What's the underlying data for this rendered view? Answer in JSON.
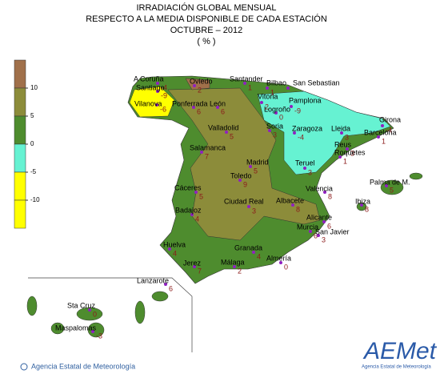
{
  "header": {
    "title": [
      "IRRADIACIÓN GLOBAL MENSUAL",
      "RESPECTO A LA MEDIA DISPONIBLE DE CADA ESTACIÓN",
      "OCTUBRE – 2012",
      "( % )"
    ]
  },
  "legend": {
    "ticks": [
      10,
      5,
      0,
      -5,
      -10
    ],
    "colors": [
      "#a0704a",
      "#8c8c3a",
      "#4e8c2e",
      "#66f2d2",
      "#ffff00",
      "#ffff00"
    ]
  },
  "stations": [
    {
      "name": "A Coruña",
      "value": -4
    },
    {
      "name": "Santiago",
      "value": -9
    },
    {
      "name": "Vilanova",
      "value": -6
    },
    {
      "name": "Ponferrada",
      "value": 6
    },
    {
      "name": "León",
      "value": 6
    },
    {
      "name": "Oviedo",
      "value": 2
    },
    {
      "name": "Santander",
      "value": 1
    },
    {
      "name": "Bilbao",
      "value": 1
    },
    {
      "name": "San Sebastian"
    },
    {
      "name": "Vitoria",
      "value": 2
    },
    {
      "name": "Logroño",
      "value": 0
    },
    {
      "name": "Pamplona",
      "value": -9
    },
    {
      "name": "Girona",
      "value": -4
    },
    {
      "name": "Soria",
      "value": 3
    },
    {
      "name": "Zaragoza",
      "value": -4
    },
    {
      "name": "Lleida",
      "value": 3
    },
    {
      "name": "Barcelona",
      "value": 1
    },
    {
      "name": "Valladolid",
      "value": 5
    },
    {
      "name": "Reus",
      "value": 3
    },
    {
      "name": "Roquetes",
      "value": 1
    },
    {
      "name": "Salamanca",
      "value": 7
    },
    {
      "name": "Madrid",
      "value": 5
    },
    {
      "name": "Teruel",
      "value": 3
    },
    {
      "name": "Palma de M.",
      "value": 5
    },
    {
      "name": "Toledo",
      "value": 9
    },
    {
      "name": "Cáceres",
      "value": 5
    },
    {
      "name": "Valencia",
      "value": 8
    },
    {
      "name": "Ibiza",
      "value": 8
    },
    {
      "name": "Ciudad Real",
      "value": 3
    },
    {
      "name": "Albacete",
      "value": 8
    },
    {
      "name": "Badajoz",
      "value": 4
    },
    {
      "name": "Alicante",
      "value": 6
    },
    {
      "name": "Murcia",
      "value": 6
    },
    {
      "name": "San Javier",
      "value": 3
    },
    {
      "name": "Huelva",
      "value": 4
    },
    {
      "name": "Granada",
      "value": 4
    },
    {
      "name": "Almería",
      "value": 0
    },
    {
      "name": "Jerez",
      "value": 7
    },
    {
      "name": "Málaga",
      "value": 2
    },
    {
      "name": "Lanzarote",
      "value": 6
    },
    {
      "name": "Sta Cruz",
      "value": 0
    },
    {
      "name": "Maspalomas",
      "value": -3
    }
  ],
  "footer": {
    "credit": "Agencia Estatal de Meteorología",
    "logo": "AEMet",
    "logo_sub": "Agencia Estatal de Meteorología"
  }
}
